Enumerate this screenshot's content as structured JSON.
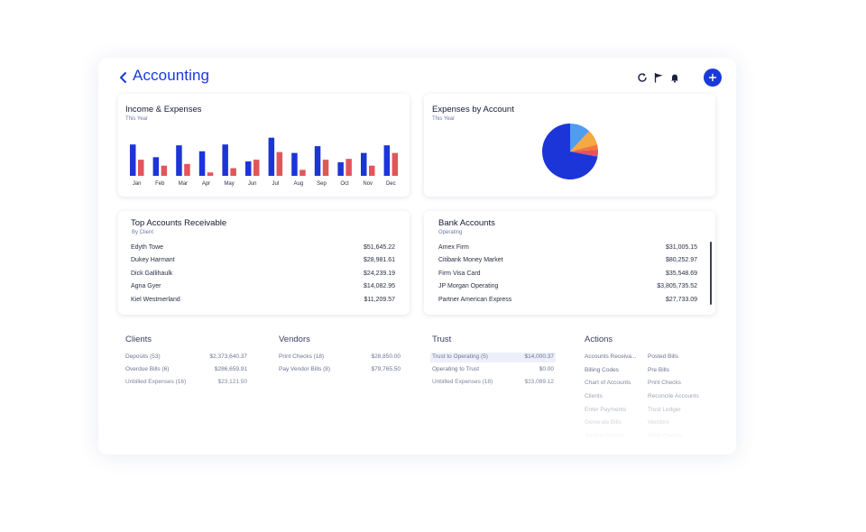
{
  "header": {
    "title": "Accounting",
    "icons": [
      "back-chevron-icon",
      "refresh-icon",
      "flag-icon",
      "bell-icon",
      "plus-icon"
    ]
  },
  "income_expenses": {
    "title": "Income & Expenses",
    "subtitle": "This Year"
  },
  "expenses_by_account": {
    "title": "Expenses by Account",
    "subtitle": "This Year"
  },
  "chart_data": [
    {
      "type": "bar",
      "title": "Income & Expenses",
      "subtitle": "This Year",
      "categories": [
        "Jan",
        "Feb",
        "Mar",
        "Apr",
        "May",
        "Jun",
        "Jul",
        "Aug",
        "Sep",
        "Oct",
        "Nov",
        "Dec"
      ],
      "series": [
        {
          "color": "#1c35d8",
          "values": [
            37,
            22,
            36,
            29,
            37,
            17,
            45,
            27,
            35,
            16,
            27,
            36
          ]
        },
        {
          "color": "#e2555b",
          "values": [
            19,
            12,
            14,
            4,
            9,
            19,
            28,
            7,
            19,
            20,
            12,
            27
          ]
        }
      ],
      "ylim": [
        0,
        50
      ],
      "grid": false
    },
    {
      "type": "pie",
      "title": "Expenses by Account",
      "subtitle": "This Year",
      "slices": [
        {
          "value": 72,
          "color": "#1c35d8"
        },
        {
          "value": 12,
          "color": "#4f9cf0"
        },
        {
          "value": 9,
          "color": "#f5a942"
        },
        {
          "value": 3,
          "color": "#f2773a"
        },
        {
          "value": 4,
          "color": "#e2555b"
        }
      ]
    }
  ],
  "receivable": {
    "title": "Top Accounts Receivable",
    "subtitle": "By Client",
    "rows": [
      {
        "name": "Edyth Towe",
        "amount": "$51,645.22"
      },
      {
        "name": "Dukey Harmant",
        "amount": "$28,981.61"
      },
      {
        "name": "Dick Gallihaulk",
        "amount": "$24,239.19"
      },
      {
        "name": "Agna Gyer",
        "amount": "$14,082.95"
      },
      {
        "name": "Kiel Westmerland",
        "amount": "$11,209.57"
      }
    ]
  },
  "bank": {
    "title": "Bank Accounts",
    "subtitle": "Operating",
    "rows": [
      {
        "name": "Amex Firm",
        "amount": "$31,005.15"
      },
      {
        "name": "Citibank Money Market",
        "amount": "$80,252.97"
      },
      {
        "name": "Firm Visa Card",
        "amount": "$35,548.69"
      },
      {
        "name": "JP Morgan Operating",
        "amount": "$3,805,735.52"
      },
      {
        "name": "Partner American Express",
        "amount": "$27,733.09"
      }
    ]
  },
  "clients": {
    "title": "Clients",
    "rows": [
      {
        "label": "Deposits (53)",
        "value": "$2,373,640.37"
      },
      {
        "label": "Overdue Bills (6)",
        "value": "$286,659.91"
      },
      {
        "label": "Unbilled Expenses (16)",
        "value": "$23,121.50"
      }
    ]
  },
  "vendors": {
    "title": "Vendors",
    "rows": [
      {
        "label": "Print Checks (18)",
        "value": "$28,850.00"
      },
      {
        "label": "Pay Vendor Bills (8)",
        "value": "$79,765.50"
      }
    ]
  },
  "trust": {
    "title": "Trust",
    "rows": [
      {
        "label": "Trust to Operating (5)",
        "value": "$14,000.37"
      },
      {
        "label": "Operating to Trust",
        "value": "$0.00"
      },
      {
        "label": "Unbilled Expenses (18)",
        "value": "$23,089.12"
      }
    ]
  },
  "actions": {
    "title": "Actions",
    "col1": [
      "Accounts Receiva...",
      "Billing Codes",
      "Chart of Accounts",
      "Clients",
      "Enter Payments",
      "Generate Bills",
      "Journal Entries"
    ],
    "col2": [
      "Posted Bills",
      "Pre Bills",
      "Print Checks",
      "Reconcile Accounts",
      "Trust Ledger",
      "Vendors",
      "Write Checks"
    ]
  }
}
